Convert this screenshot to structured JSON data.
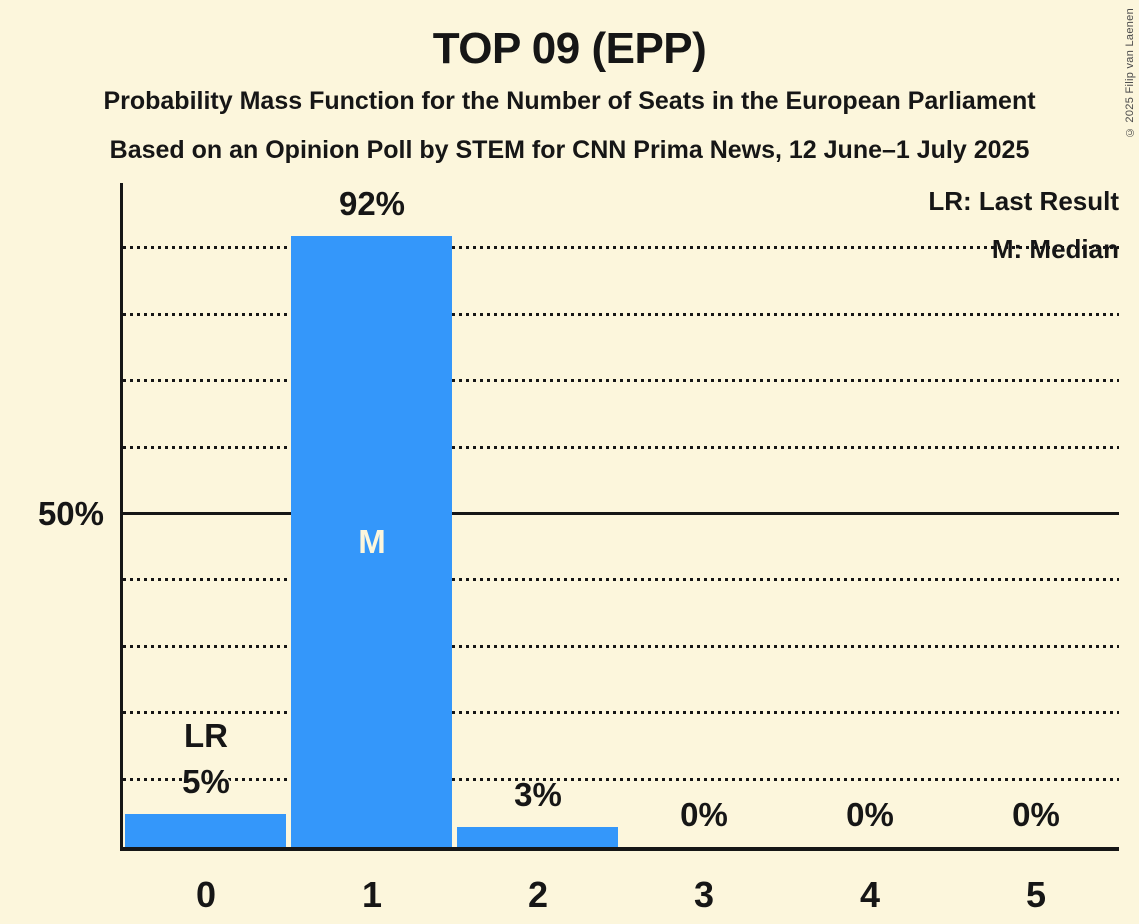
{
  "header": {
    "title": "TOP 09 (EPP)",
    "subtitle1": "Probability Mass Function for the Number of Seats in the European Parliament",
    "subtitle2": "Based on an Opinion Poll by STEM for CNN Prima News, 12 June–1 July 2025"
  },
  "copyright": "© 2025 Filip van Laenen",
  "colors": {
    "background": "#FCF6DC",
    "bar": "#3497FA",
    "text": "#161616",
    "median_label": "#FCF6DC",
    "copyright": "#4A4A4A"
  },
  "chart_data": {
    "type": "bar",
    "title": "TOP 09 (EPP)",
    "categories": [
      "0",
      "1",
      "2",
      "3",
      "4",
      "5"
    ],
    "values": [
      5,
      92,
      3,
      0,
      0,
      0
    ],
    "value_labels": [
      "5%",
      "92%",
      "3%",
      "0%",
      "0%",
      "0%"
    ],
    "ylim": [
      0,
      100
    ],
    "y_gridline_step": 10,
    "y_solid_line_at": 50,
    "y_tick": {
      "value": 50,
      "label": "50%"
    },
    "grid": "horizontal dotted lines every 10%, solid line at 50%",
    "legend_lines": [
      "LR: Last Result",
      "M: Median"
    ],
    "legend_position": "top-right",
    "annotations": [
      {
        "text": "LR",
        "meaning": "Last Result",
        "category_index": 0,
        "position": "above-value-label"
      },
      {
        "text": "M",
        "meaning": "Median",
        "category_index": 1,
        "position": "inside-bar"
      }
    ]
  }
}
